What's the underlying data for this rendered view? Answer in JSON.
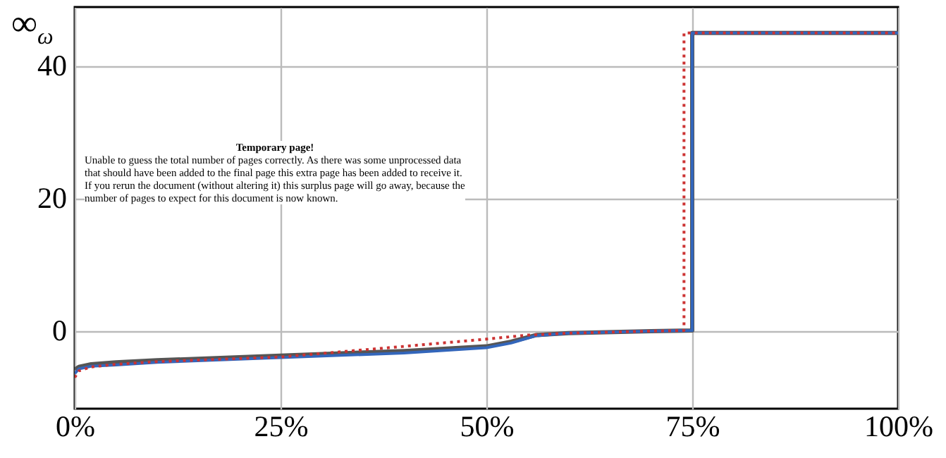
{
  "chart_data": {
    "type": "line",
    "ylabel": "∞$_{ω}$",
    "xlim": [
      0,
      100
    ],
    "ylim": [
      -11.7,
      48.9
    ],
    "xticks": [
      {
        "value": 0,
        "label": "0%"
      },
      {
        "value": 25,
        "label": "25%"
      },
      {
        "value": 50,
        "label": "50%"
      },
      {
        "value": 75,
        "label": "75%"
      },
      {
        "value": 100,
        "label": "100%"
      }
    ],
    "yticks": [
      0,
      20,
      40
    ],
    "grid": true,
    "annotations": [
      "Temporary page!",
      "Unable to guess the total number of pages correctly. As there was some unprocessed data that should have been added to the final page this extra page has been added to receive it.",
      "If you rerun the document (without altering it) this surplus page will go away, because the number of pages to expect for this document is now known."
    ],
    "series": [
      {
        "color": "#555555",
        "line_style": "solid",
        "x": [
          0,
          0.5,
          2,
          5,
          10,
          25,
          40,
          50,
          53,
          56,
          60,
          70,
          75,
          75,
          100
        ],
        "values": [
          -5.8,
          -5.4,
          -5.0,
          -4.7,
          -4.4,
          -3.7,
          -3.0,
          -2.3,
          -1.6,
          -0.6,
          -0.3,
          0,
          0.1,
          45,
          45
        ]
      },
      {
        "color": "#3366bb",
        "line_style": "solid",
        "x": [
          0,
          0.5,
          2,
          5,
          10,
          25,
          40,
          50,
          53,
          56,
          60,
          70,
          75,
          75,
          100
        ],
        "values": [
          -6.4,
          -5.7,
          -5.3,
          -5.1,
          -4.7,
          -4.0,
          -3.3,
          -2.5,
          -1.8,
          -0.7,
          -0.3,
          0,
          0.1,
          45,
          45
        ]
      },
      {
        "color": "#cc3333",
        "line_style": "dotted",
        "x": [
          0,
          0.5,
          2,
          5,
          10,
          25,
          40,
          50,
          55,
          60,
          70,
          74,
          74,
          100
        ],
        "values": [
          -7.0,
          -6.0,
          -5.4,
          -5.0,
          -4.6,
          -3.9,
          -2.3,
          -1.2,
          -0.6,
          -0.3,
          0,
          0.1,
          45,
          45
        ]
      }
    ]
  }
}
